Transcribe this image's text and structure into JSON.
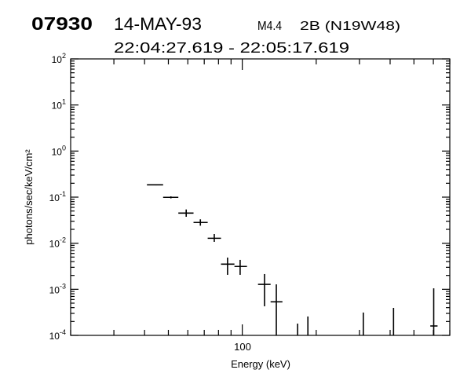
{
  "header": {
    "event_id": "07930",
    "date": "14-MAY-93",
    "goes_class": "M4.4",
    "optical_class_location": "2B (N19W48)",
    "time_range": "22:04:27.619 - 22:05:17.619"
  },
  "chart_data": {
    "type": "scatter",
    "style": "error-bars",
    "xlabel": "Energy (keV)",
    "ylabel": "photons/sec/keV/cm²",
    "xscale": "log",
    "yscale": "log",
    "xlim": [
      20,
      700
    ],
    "ylim": [
      0.0001,
      100
    ],
    "x_tick_labels": [
      "100"
    ],
    "y_tick_labels": [
      {
        "base": "10",
        "exp": "2",
        "value": 100
      },
      {
        "base": "10",
        "exp": "1",
        "value": 10
      },
      {
        "base": "10",
        "exp": "0",
        "value": 1
      },
      {
        "base": "10",
        "exp": "-1",
        "value": 0.1
      },
      {
        "base": "10",
        "exp": "-2",
        "value": 0.01
      },
      {
        "base": "10",
        "exp": "-3",
        "value": 0.001
      },
      {
        "base": "10",
        "exp": "-4",
        "value": 0.0001
      }
    ],
    "grid": false,
    "color": "#000000",
    "points": [
      {
        "x": 44.5,
        "xlow": 40.9,
        "xhigh": 47.6,
        "y": 0.185,
        "ylow": 0.18,
        "yhigh": 0.19
      },
      {
        "x": 51.2,
        "xlow": 47.6,
        "xhigh": 54.9,
        "y": 0.099,
        "ylow": 0.094,
        "yhigh": 0.104
      },
      {
        "x": 59.1,
        "xlow": 54.9,
        "xhigh": 63.3,
        "y": 0.0451,
        "ylow": 0.0375,
        "yhigh": 0.054
      },
      {
        "x": 67.5,
        "xlow": 63.3,
        "xhigh": 72.3,
        "y": 0.0282,
        "ylow": 0.024,
        "yhigh": 0.033
      },
      {
        "x": 76.9,
        "xlow": 72.3,
        "xhigh": 81.9,
        "y": 0.0128,
        "ylow": 0.0107,
        "yhigh": 0.0158
      },
      {
        "x": 87.1,
        "xlow": 81.9,
        "xhigh": 92.9,
        "y": 0.00352,
        "ylow": 0.00206,
        "yhigh": 0.00488
      },
      {
        "x": 98.0,
        "xlow": 92.9,
        "xhigh": 104.5,
        "y": 0.00313,
        "ylow": 0.00206,
        "yhigh": 0.00434
      },
      {
        "x": 123.2,
        "xlow": 115.9,
        "xhigh": 130.4,
        "y": 0.00128,
        "ylow": 0.000428,
        "yhigh": 0.00214
      },
      {
        "x": 137.6,
        "xlow": 130.4,
        "xhigh": 145.7,
        "y": 0.000535,
        "ylow": 0.0001,
        "yhigh": 0.00128
      },
      {
        "x": 168,
        "y": null,
        "ylow": 0.0001,
        "yhigh": 0.00018
      },
      {
        "x": 185,
        "y": null,
        "ylow": 0.0001,
        "yhigh": 0.000257
      },
      {
        "x": 311,
        "y": null,
        "ylow": 0.0001,
        "yhigh": 0.000313
      },
      {
        "x": 413,
        "y": null,
        "ylow": 0.0001,
        "yhigh": 0.000395
      },
      {
        "x": 602,
        "xlow": 583,
        "xhigh": 624,
        "y": 0.00016,
        "ylow": 0.0001,
        "yhigh": 0.00105
      }
    ]
  }
}
